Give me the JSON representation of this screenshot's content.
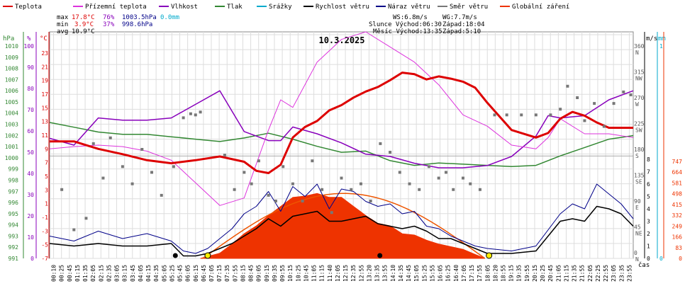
{
  "chart_data": {
    "type": "line",
    "title": "10.3.2025",
    "x_label": "čas",
    "legend": [
      {
        "name": "Teplota",
        "color": "#dd0000"
      },
      {
        "name": "Přízemní teplota",
        "color": "#dd33dd"
      },
      {
        "name": "Vlhkost",
        "color": "#8800bb"
      },
      {
        "name": "Tlak",
        "color": "#338833"
      },
      {
        "name": "Srážky",
        "color": "#00aacc"
      },
      {
        "name": "Rychlost větru",
        "color": "#000000"
      },
      {
        "name": "Náraz větru",
        "color": "#000088"
      },
      {
        "name": "Směr větru",
        "color": "#777777"
      },
      {
        "name": "Globální záření",
        "color": "#ee3300"
      }
    ],
    "stats": {
      "max": {
        "label": "max",
        "temp": "17.8°C",
        "hum": "76%",
        "press": "1003.5hPa",
        "rain": "0.0mm"
      },
      "min": {
        "label": "min",
        "temp": "3.9°C",
        "hum": "37%",
        "press": "998.6hPa"
      },
      "avg": {
        "label": "avg",
        "temp": "10.9°C"
      }
    },
    "info": {
      "ws": "WS:6.8m/s",
      "wg": "WG:7.7m/s",
      "sun": "Slunce Východ:06:30",
      "sun_set": "Západ:18:04",
      "moon": "Měsíc Východ:13:35",
      "moon_set": "Západ:5:10"
    },
    "axis_units": {
      "hpa": "hPa",
      "pct": "%",
      "c": "°C",
      "ms": "m/s",
      "mm": "mm"
    },
    "ticks": {
      "hpa": [
        "1010",
        "1009",
        "1008",
        "1007",
        "1006",
        "1005",
        "1004",
        "1003",
        "1002",
        "1001",
        "1000",
        "999",
        "998",
        "997",
        "996",
        "995",
        "994",
        "993",
        "992",
        "991"
      ],
      "pct": [
        "100",
        "90",
        "80",
        "70",
        "60",
        "50",
        "40",
        "30",
        "20",
        "10",
        "0"
      ],
      "c": [
        "23",
        "21",
        "19",
        "17",
        "15",
        "13",
        "11",
        "9",
        "7",
        "5",
        "3",
        "1",
        "-1",
        "-3",
        "-5",
        "-7"
      ],
      "dir": [
        "360",
        "315",
        "270",
        "225",
        "180",
        "135",
        "90",
        "45",
        "0"
      ],
      "dir_letters": [
        "N",
        "NW",
        "W",
        "SW",
        "S",
        "SE",
        "E",
        "NE",
        "N"
      ],
      "ms": [
        "8",
        "7",
        "6",
        "5",
        "4",
        "3",
        "2",
        "1",
        "0"
      ],
      "mm": [
        "1",
        "0"
      ],
      "rad": [
        "747",
        "664",
        "581",
        "498",
        "415",
        "332",
        "249",
        "166",
        "83",
        "0"
      ],
      "time": [
        "00:10",
        "00:25",
        "00:45",
        "01:15",
        "01:35",
        "02:05",
        "02:15",
        "02:35",
        "03:05",
        "03:15",
        "03:45",
        "04:05",
        "04:15",
        "04:35",
        "05:05",
        "05:25",
        "05:45",
        "06:05",
        "06:15",
        "06:45",
        "07:05",
        "07:15",
        "07:35",
        "07:55",
        "08:15",
        "08:45",
        "09:05",
        "09:15",
        "09:35",
        "09:55",
        "10:15",
        "10:25",
        "10:45",
        "11:05",
        "11:15",
        "11:40",
        "12:05",
        "12:15",
        "12:35",
        "12:55",
        "13:20",
        "13:35",
        "13:55",
        "14:10",
        "14:35",
        "14:45",
        "15:05",
        "15:25",
        "15:55",
        "16:05",
        "16:25",
        "16:40",
        "17:05",
        "17:15",
        "17:55",
        "18:05",
        "18:20",
        "18:55",
        "19:15",
        "19:35",
        "19:55",
        "20:15",
        "20:25",
        "20:45",
        "21:05",
        "21:15",
        "21:35",
        "21:55",
        "22:05",
        "22:25",
        "22:55",
        "23:05",
        "23:35",
        "23:55"
      ]
    },
    "ranges": {
      "temp_c": [
        -7,
        23
      ],
      "humidity_pct": [
        0,
        100
      ],
      "pressure_hpa": [
        991,
        1010
      ],
      "wind_ms": [
        0,
        8
      ],
      "direction_deg": [
        0,
        360
      ],
      "radiation": [
        0,
        747
      ]
    },
    "series": [
      {
        "name": "Teplota",
        "unit": "°C",
        "x": [
          0,
          1,
          2,
          3,
          4,
          5,
          6,
          7,
          8,
          8.5,
          9,
          9.5,
          10,
          10.5,
          11,
          11.5,
          12,
          12.5,
          13,
          13.5,
          14,
          14.5,
          15,
          15.5,
          16,
          16.5,
          17,
          17.5,
          18,
          19,
          20,
          20.5,
          21,
          21.5,
          22,
          22.5,
          23,
          24
        ],
        "values": [
          8.5,
          8.5,
          7.5,
          6.8,
          6.0,
          5.6,
          6.0,
          6.5,
          5.8,
          4.6,
          4.3,
          5.4,
          9.0,
          10.4,
          11.2,
          12.6,
          13.3,
          14.3,
          15.1,
          15.7,
          16.6,
          17.6,
          17.4,
          16.7,
          17.1,
          16.8,
          16.4,
          15.6,
          13.6,
          10.0,
          9.0,
          9.6,
          11.5,
          12.4,
          11.9,
          11.0,
          10.3,
          10.3
        ]
      },
      {
        "name": "Vlhkost",
        "unit": "%",
        "x": [
          0,
          1,
          2,
          3,
          4,
          5,
          6,
          7,
          8,
          9,
          9.5,
          10,
          11,
          12,
          13,
          14,
          15,
          16,
          17,
          18,
          19,
          20,
          20.5,
          21,
          22,
          23,
          24
        ],
        "values": [
          53,
          50,
          62,
          61,
          61,
          62,
          68,
          74,
          56,
          52,
          52,
          58,
          55,
          51,
          46,
          45,
          42,
          40,
          40,
          41,
          45,
          54,
          63,
          62,
          63,
          70,
          74
        ]
      },
      {
        "name": "Tlak",
        "unit": "hPa",
        "x": [
          0,
          1,
          2,
          3,
          4,
          5,
          6,
          7,
          8,
          9,
          10,
          11,
          12,
          13,
          14,
          15,
          16,
          17,
          18,
          19,
          20,
          21,
          22,
          23,
          24
        ],
        "values": [
          1002.4,
          1002.0,
          1001.6,
          1001.4,
          1001.4,
          1001.2,
          1001.0,
          1000.8,
          1001.1,
          1001.5,
          1001.0,
          1000.4,
          999.9,
          1000.0,
          999.2,
          998.8,
          999.0,
          998.9,
          998.8,
          998.7,
          998.8,
          999.6,
          1000.3,
          1001.0,
          1001.3
        ]
      },
      {
        "name": "Přízemní teplota",
        "unit": "°C",
        "x": [
          0,
          1,
          2,
          3,
          4,
          5,
          6,
          7,
          8,
          9,
          9.5,
          10,
          11,
          12,
          13,
          14,
          15,
          16,
          17,
          18,
          19,
          20,
          20.5,
          21,
          22,
          23,
          24
        ],
        "values": [
          7.5,
          7.8,
          8.0,
          7.8,
          7.2,
          6.0,
          3.0,
          0.0,
          1.0,
          10.0,
          14.0,
          13.0,
          19.0,
          22.0,
          23.0,
          21.0,
          19.0,
          16.0,
          12.0,
          10.5,
          8.0,
          7.5,
          9.0,
          11.5,
          9.5,
          9.5,
          9.0
        ]
      },
      {
        "name": "Rychlost větru",
        "unit": "m/s",
        "x": [
          0,
          1,
          2,
          3,
          4,
          5,
          5.5,
          6,
          6.5,
          7,
          7.5,
          8,
          8.5,
          9,
          9.5,
          10,
          10.5,
          11,
          11.5,
          12,
          12.5,
          13,
          13.5,
          14,
          14.5,
          15,
          15.5,
          16,
          16.5,
          17,
          17.5,
          18,
          19,
          20,
          21,
          21.5,
          22,
          22.5,
          23,
          23.5,
          24
        ],
        "values": [
          1.2,
          1.0,
          1.2,
          1.0,
          1.0,
          1.2,
          0.2,
          0.2,
          0.4,
          0.8,
          1.2,
          1.8,
          2.4,
          3.2,
          2.6,
          3.4,
          3.6,
          3.8,
          3.0,
          3.0,
          3.2,
          3.4,
          2.8,
          2.6,
          2.4,
          2.6,
          2.2,
          1.6,
          1.6,
          1.2,
          0.8,
          0.4,
          0.4,
          0.6,
          3.0,
          3.2,
          3.0,
          4.2,
          4.0,
          3.6,
          2.6
        ]
      },
      {
        "name": "Náraz větru",
        "unit": "m/s",
        "x": [
          0,
          1,
          2,
          3,
          4,
          5,
          5.5,
          6,
          6.5,
          7,
          7.5,
          8,
          8.5,
          9,
          9.5,
          10,
          10.5,
          11,
          11.5,
          12,
          12.5,
          13,
          13.5,
          14,
          14.5,
          15,
          15.5,
          16,
          16.5,
          17,
          17.5,
          18,
          19,
          20,
          21,
          21.5,
          22,
          22.5,
          23,
          23.5,
          24
        ],
        "values": [
          1.8,
          1.4,
          2.2,
          1.6,
          2.0,
          1.4,
          0.6,
          0.4,
          0.8,
          1.6,
          2.4,
          3.6,
          4.2,
          5.4,
          3.8,
          5.8,
          5.0,
          6.0,
          4.0,
          5.6,
          5.4,
          4.6,
          4.2,
          4.4,
          3.6,
          3.8,
          2.6,
          2.4,
          1.8,
          1.4,
          1.0,
          0.8,
          0.6,
          1.0,
          3.6,
          4.4,
          4.0,
          6.0,
          5.2,
          4.4,
          3.2
        ]
      },
      {
        "name": "Globální záření",
        "unit": "W/m²",
        "x": [
          6.2,
          7,
          7.5,
          8,
          8.5,
          9,
          9.5,
          10,
          10.5,
          11,
          11.5,
          12,
          12.5,
          13,
          13.5,
          14,
          14.5,
          15,
          15.5,
          16,
          16.5,
          17,
          17.5,
          17.9
        ],
        "values": [
          0,
          40,
          110,
          190,
          250,
          330,
          400,
          470,
          480,
          500,
          470,
          470,
          400,
          330,
          270,
          250,
          190,
          180,
          140,
          110,
          90,
          70,
          30,
          0
        ]
      }
    ],
    "theoretical_radiation": {
      "peak_time": 12.0,
      "peak_value": 500,
      "start": 6.3,
      "end": 17.9
    },
    "wind_direction": {
      "unit": "°",
      "x": [
        0.5,
        1.0,
        1.5,
        1.8,
        2.2,
        2.5,
        3.0,
        3.4,
        3.8,
        4.2,
        4.6,
        5.1,
        5.5,
        5.8,
        6.0,
        6.2,
        7.2,
        7.6,
        8.0,
        8.3,
        8.6,
        9.0,
        9.3,
        9.6,
        10.0,
        10.4,
        10.8,
        11.2,
        11.6,
        12.0,
        12.4,
        12.8,
        13.2,
        13.6,
        14.0,
        14.4,
        14.8,
        15.2,
        15.6,
        16.0,
        16.3,
        16.6,
        17.0,
        17.3,
        17.7,
        18.3,
        18.8,
        19.4,
        20.0,
        20.6,
        21.0,
        21.3,
        21.7,
        22.0,
        22.4,
        22.8,
        23.2,
        23.6,
        23.9
      ],
      "values": [
        110,
        40,
        60,
        190,
        130,
        200,
        150,
        120,
        180,
        140,
        100,
        150,
        235,
        242,
        240,
        245,
        170,
        110,
        140,
        120,
        160,
        100,
        90,
        150,
        120,
        90,
        160,
        110,
        70,
        130,
        110,
        120,
        90,
        190,
        175,
        140,
        120,
        110,
        150,
        130,
        140,
        110,
        130,
        120,
        110,
        240,
        240,
        240,
        240,
        240,
        250,
        290,
        270,
        230,
        260,
        220,
        260,
        280,
        275
      ]
    }
  }
}
